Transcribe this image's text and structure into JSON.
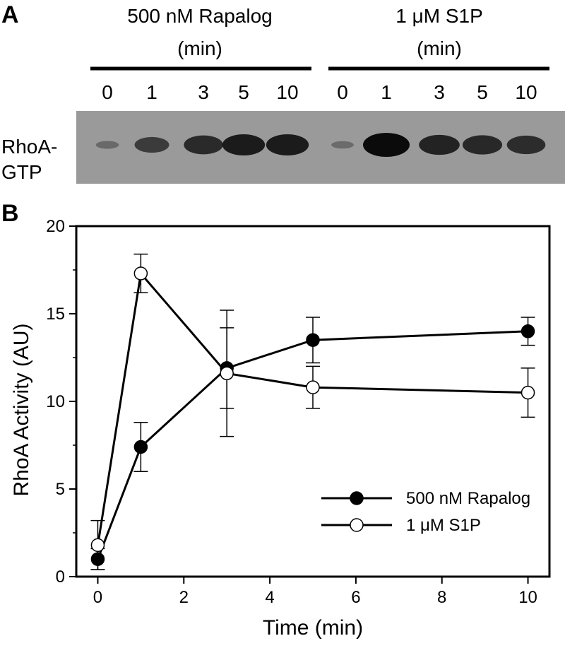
{
  "panel_a": {
    "letter": "A",
    "groups": [
      {
        "line1": "500 nM Rapalog",
        "line2": "(min)",
        "lanes": [
          "0",
          "1",
          "3",
          "5",
          "10"
        ],
        "intensity": [
          0.12,
          0.55,
          0.72,
          0.85,
          0.85
        ]
      },
      {
        "line1": "1 μM S1P",
        "line2": "(min)",
        "lanes": [
          "0",
          "1",
          "3",
          "5",
          "10"
        ],
        "intensity": [
          0.1,
          1.0,
          0.78,
          0.74,
          0.7
        ]
      }
    ],
    "band_label_line1": "RhoA-",
    "band_label_line2": "GTP",
    "blot_bg": "#9a9a9a",
    "band_color": "#0b0b0b"
  },
  "panel_b": {
    "letter": "B"
  },
  "chart_data": {
    "type": "line",
    "xlabel": "Time (min)",
    "ylabel": "RhoA Activity (AU)",
    "xlim": [
      -0.5,
      10.5
    ],
    "ylim": [
      0,
      20
    ],
    "xticks": [
      0,
      2,
      4,
      6,
      8,
      10
    ],
    "yticks": [
      0,
      5,
      10,
      15,
      20
    ],
    "grid": false,
    "legend_position": "bottom-right",
    "series": [
      {
        "name": "500 nM Rapalog",
        "marker": "filled-circle",
        "color": "#000000",
        "x": [
          0,
          1,
          3,
          5,
          10
        ],
        "y": [
          1.0,
          7.4,
          11.9,
          13.5,
          14.0
        ],
        "err": [
          0.6,
          1.4,
          2.3,
          1.3,
          0.8
        ]
      },
      {
        "name": "1 μM S1P",
        "marker": "open-circle",
        "color": "#000000",
        "x": [
          0,
          1,
          3,
          5,
          10
        ],
        "y": [
          1.8,
          17.3,
          11.6,
          10.8,
          10.5
        ],
        "err": [
          1.4,
          1.1,
          3.6,
          1.2,
          1.4
        ]
      }
    ]
  }
}
